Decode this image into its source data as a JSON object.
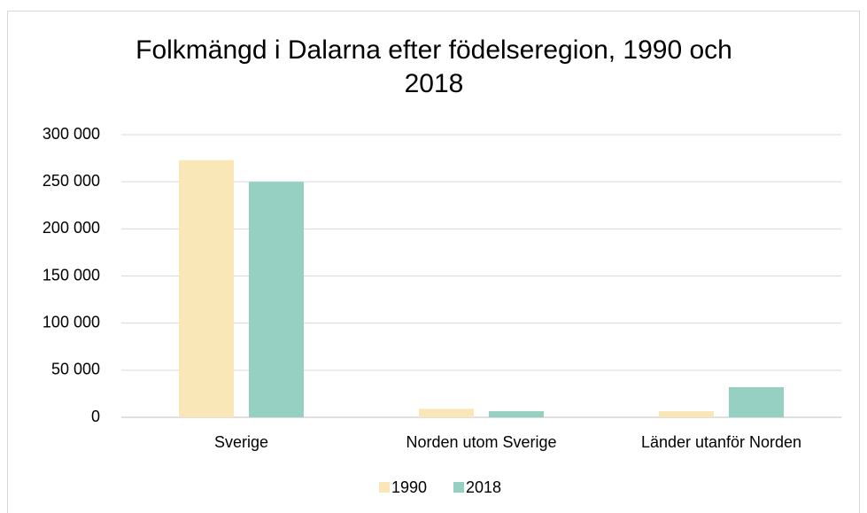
{
  "chart_data": {
    "type": "bar",
    "title": "Folkmängd i Dalarna efter födelseregion, 1990 och 2018",
    "categories": [
      "Sverige",
      "Norden utom Sverige",
      "Länder utanför Norden"
    ],
    "series": [
      {
        "name": "1990",
        "color": "#f9e7b8",
        "values": [
          273000,
          9000,
          6500
        ]
      },
      {
        "name": "2018",
        "color": "#96d0c3",
        "values": [
          250000,
          6500,
          32000
        ]
      }
    ],
    "ylim": [
      0,
      300000
    ],
    "yticks": [
      0,
      {
        "value": 50000,
        "label": "50 000"
      },
      {
        "value": 100000,
        "label": "100 000"
      },
      {
        "value": 150000,
        "label": "150 000"
      },
      {
        "value": 200000,
        "label": "200 000"
      },
      {
        "value": 250000,
        "label": "250 000"
      },
      {
        "value": 300000,
        "label": "300 000"
      }
    ],
    "grid": true,
    "legend": "bottom"
  }
}
